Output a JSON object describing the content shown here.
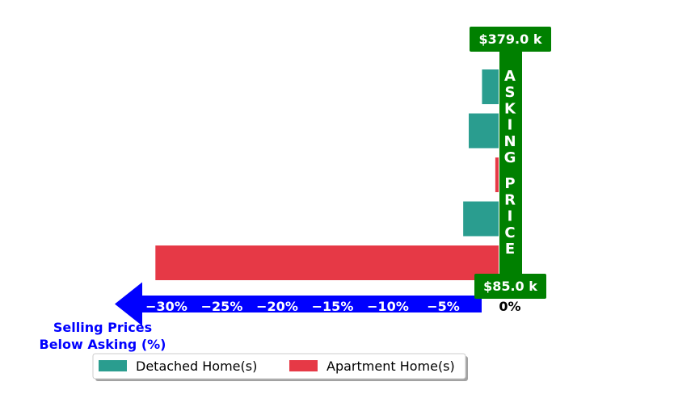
{
  "chart_data": {
    "type": "bar",
    "orientation": "horizontal",
    "xlabel": "Selling Prices\nBelow Asking (%)",
    "xlim": [
      -33,
      0
    ],
    "x_ticks": [
      "−30%",
      "−25%",
      "−20%",
      "−15%",
      "−10%",
      "−5%",
      "0%"
    ],
    "x_tick_values": [
      -30,
      -25,
      -20,
      -15,
      -10,
      -5,
      0
    ],
    "bars": [
      {
        "series": "Detached Home(s)",
        "value": -1.5
      },
      {
        "series": "Detached Home(s)",
        "value": -2.7
      },
      {
        "series": "Apartment Home(s)",
        "value": -0.3
      },
      {
        "series": "Detached Home(s)",
        "value": -3.2
      },
      {
        "series": "Apartment Home(s)",
        "value": -31.0
      }
    ],
    "series": [
      {
        "name": "Detached Home(s)",
        "color": "#2a9d8f"
      },
      {
        "name": "Apartment Home(s)",
        "color": "#e63946"
      }
    ],
    "zero_line_label": "ASKING PRICE",
    "top_badge": "$379.0 k",
    "bottom_badge": "$85.0 k",
    "legend_placement": "bottom-left",
    "grid": false,
    "colors": {
      "badge": "#008000",
      "arrow": "#0000ff",
      "xlabel": "#0000ff"
    }
  }
}
